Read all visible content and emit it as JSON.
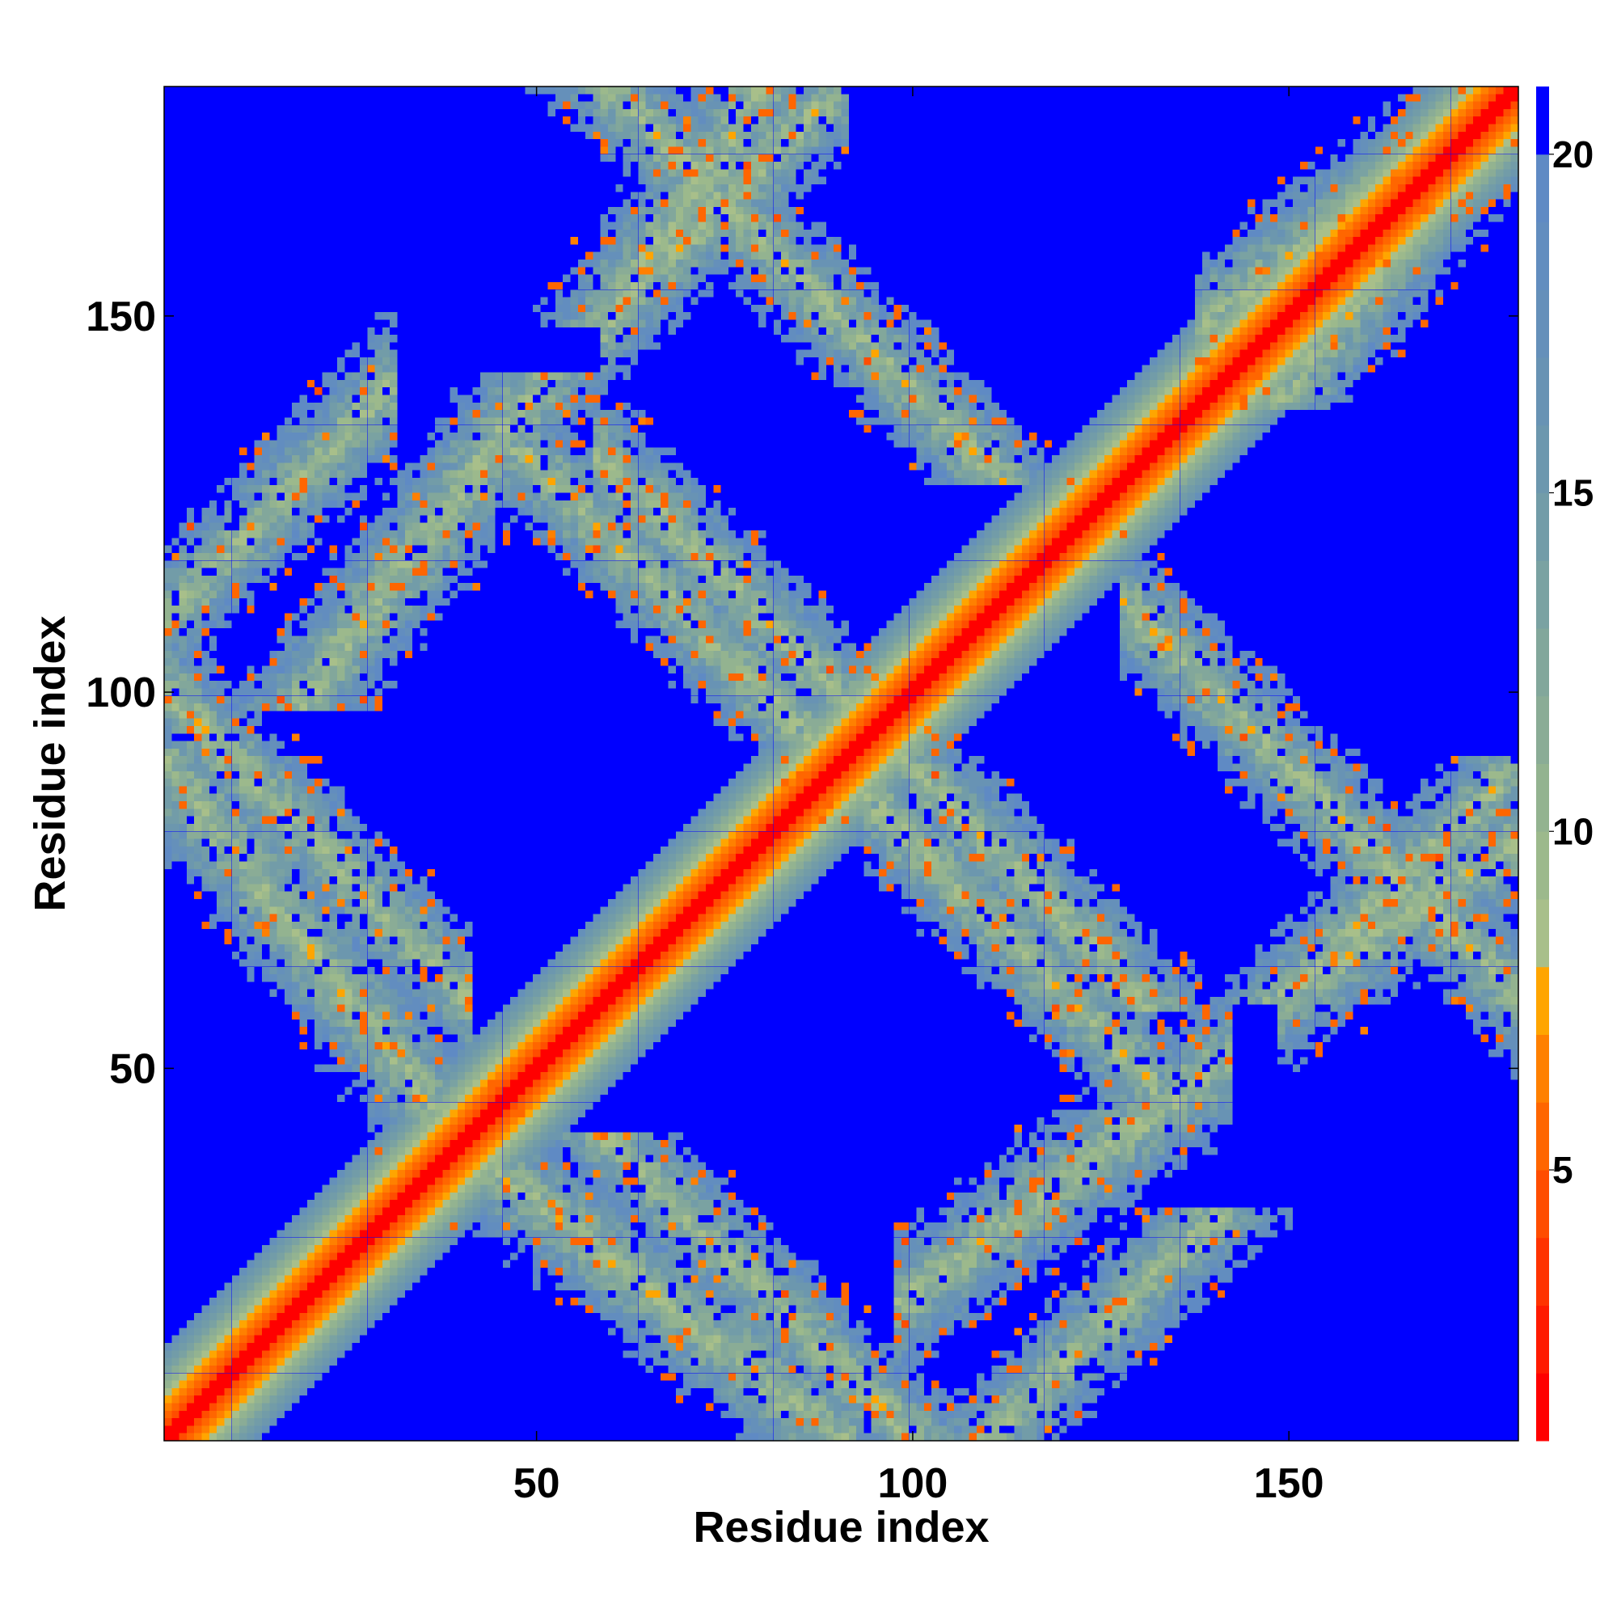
{
  "chart_data": {
    "type": "heatmap",
    "title": "",
    "xlabel": "Residue index",
    "ylabel": "Residue index",
    "n_residues": 180,
    "xlim": [
      1,
      180
    ],
    "ylim": [
      1,
      180
    ],
    "x_ticks": [
      50,
      100,
      150
    ],
    "y_ticks": [
      50,
      100,
      150
    ],
    "colorbar": {
      "ticks": [
        5,
        10,
        15,
        20
      ],
      "range": [
        1,
        21
      ],
      "levels": [
        {
          "max": 2,
          "color": "#ff0000"
        },
        {
          "max": 3,
          "color": "#ff1a00"
        },
        {
          "max": 4,
          "color": "#ff3300"
        },
        {
          "max": 5,
          "color": "#ff4d00"
        },
        {
          "max": 6,
          "color": "#ff6600"
        },
        {
          "max": 7,
          "color": "#ff8000"
        },
        {
          "max": 8,
          "color": "#ffa500"
        },
        {
          "max": 9,
          "color": "#a8bf8a"
        },
        {
          "max": 10,
          "color": "#9cb98c"
        },
        {
          "max": 11,
          "color": "#93b390"
        },
        {
          "max": 12,
          "color": "#8aac96"
        },
        {
          "max": 13,
          "color": "#82a79b"
        },
        {
          "max": 14,
          "color": "#7aa2a2"
        },
        {
          "max": 15,
          "color": "#729ca8"
        },
        {
          "max": 16,
          "color": "#6c97ae"
        },
        {
          "max": 17,
          "color": "#6893b4"
        },
        {
          "max": 18,
          "color": "#6590ba"
        },
        {
          "max": 19,
          "color": "#628dbf"
        },
        {
          "max": 20,
          "color": "#5f8ac4"
        },
        {
          "max": 21,
          "color": "#0000ff"
        }
      ]
    },
    "structure": {
      "description_free": true,
      "diagonal_band": true,
      "off_diagonal_bands": [
        {
          "i_start": 1,
          "i_end": 40,
          "j_start": 100,
          "j_end": 60
        },
        {
          "i_start": 40,
          "i_end": 90,
          "j_start": 40,
          "j_end": 1
        },
        {
          "i_start": 60,
          "i_end": 100,
          "j_start": 130,
          "j_end": 90
        },
        {
          "i_start": 90,
          "i_end": 130,
          "j_start": 90,
          "j_end": 50
        },
        {
          "i_start": 100,
          "i_end": 140,
          "j_start": 20,
          "j_end": 50
        },
        {
          "i_start": 130,
          "i_end": 180,
          "j_start": 110,
          "j_end": 60
        },
        {
          "i_start": 60,
          "i_end": 90,
          "j_start": 150,
          "j_end": 180
        },
        {
          "i_start": 1,
          "i_end": 30,
          "j_start": 110,
          "j_end": 140
        },
        {
          "i_start": 150,
          "i_end": 180,
          "j_start": 60,
          "j_end": 80
        },
        {
          "i_start": 140,
          "i_end": 180,
          "j_start": 150,
          "j_end": 180
        }
      ]
    }
  }
}
